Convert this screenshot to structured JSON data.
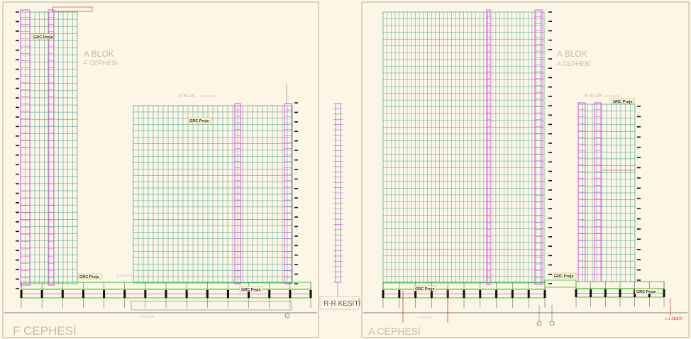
{
  "colors": {
    "background": "#fbf6e6",
    "facade_green": "#1f8f80",
    "structure_magenta": "#e040e0",
    "slab_green": "#3cc43c",
    "frame_gray": "#b9b2a3",
    "label_gray": "#bcb5a8",
    "title_gray": "#c4bdb0",
    "annotation_dark": "#2a2a2a",
    "section_red": "#e02020",
    "hatch_black": "#111111"
  },
  "left_view": {
    "title": "F CEPHESİ",
    "block_a": {
      "name": "A BLOK",
      "facade": "F CEPHESİ"
    },
    "block_b": {
      "name": "B BLOK",
      "facade": "B CEPHESİ"
    },
    "grc_tags": [
      "GRC Proje",
      "GRC Proje",
      "GRC Proje",
      "GRC Proje"
    ],
    "small_note": "B CEPHESİ",
    "ground_note": "F CEPHESİ"
  },
  "section_view": {
    "title": "R-R KESİTİ"
  },
  "right_view": {
    "title": "A CEPHESİ",
    "block_a": {
      "name": "A BLOK",
      "facade": "A CEPHESİ"
    },
    "block_b": {
      "name": "B BLOK",
      "facade": "B CEPHESİ"
    },
    "grc_tags": [
      "GRC Proje",
      "GRC Proje",
      "GRC Proje",
      "GRC Proje"
    ],
    "ground_note": "A CEPHESİ",
    "section_marker": "L-L KESİTİ"
  }
}
